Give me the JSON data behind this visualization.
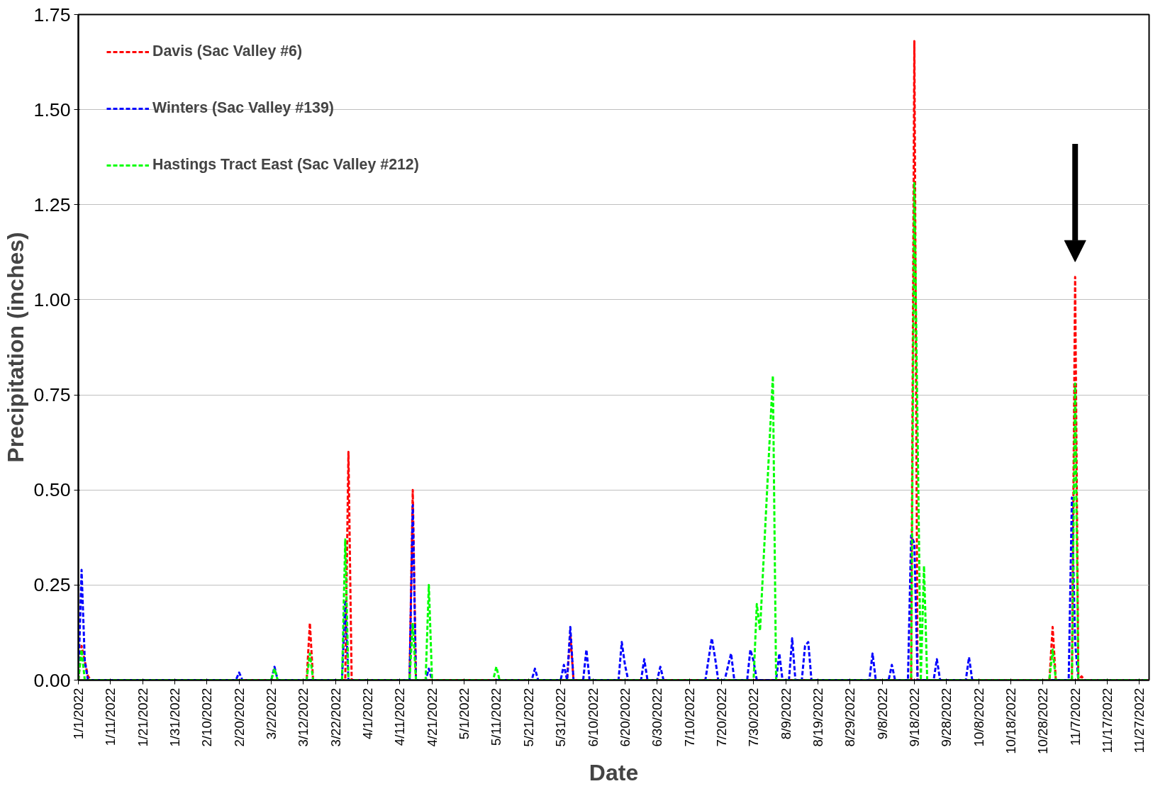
{
  "chart_data": {
    "type": "line",
    "xlabel": "Date",
    "ylabel": "Precipitation (inches)",
    "line_style": "dashed",
    "grid": "y",
    "legend": "top left",
    "xlim": [
      "2022-01-01",
      "2022-11-30"
    ],
    "ylim": [
      0,
      1.75
    ],
    "yticks": [
      {
        "value": 0,
        "label": "0.00"
      },
      {
        "value": 0.25,
        "label": "0.25"
      },
      {
        "value": 0.5,
        "label": "0.50"
      },
      {
        "value": 0.75,
        "label": "0.75"
      },
      {
        "value": 1.0,
        "label": "1.00"
      },
      {
        "value": 1.25,
        "label": "1.25"
      },
      {
        "value": 1.5,
        "label": "1.50"
      },
      {
        "value": 1.75,
        "label": "1.75"
      }
    ],
    "xticks": [
      {
        "value": "2022-01-01",
        "label": "1/1/2022"
      },
      {
        "value": "2022-01-11",
        "label": "1/11/2022"
      },
      {
        "value": "2022-01-21",
        "label": "1/21/2022"
      },
      {
        "value": "2022-01-31",
        "label": "1/31/2022"
      },
      {
        "value": "2022-02-10",
        "label": "2/10/2022"
      },
      {
        "value": "2022-02-20",
        "label": "2/20/2022"
      },
      {
        "value": "2022-03-02",
        "label": "3/2/2022"
      },
      {
        "value": "2022-03-12",
        "label": "3/12/2022"
      },
      {
        "value": "2022-03-22",
        "label": "3/22/2022"
      },
      {
        "value": "2022-04-01",
        "label": "4/1/2022"
      },
      {
        "value": "2022-04-11",
        "label": "4/11/2022"
      },
      {
        "value": "2022-04-21",
        "label": "4/21/2022"
      },
      {
        "value": "2022-05-01",
        "label": "5/1/2022"
      },
      {
        "value": "2022-05-11",
        "label": "5/11/2022"
      },
      {
        "value": "2022-05-21",
        "label": "5/21/2022"
      },
      {
        "value": "2022-05-31",
        "label": "5/31/2022"
      },
      {
        "value": "2022-06-10",
        "label": "6/10/2022"
      },
      {
        "value": "2022-06-20",
        "label": "6/20/2022"
      },
      {
        "value": "2022-06-30",
        "label": "6/30/2022"
      },
      {
        "value": "2022-07-10",
        "label": "7/10/2022"
      },
      {
        "value": "2022-07-20",
        "label": "7/20/2022"
      },
      {
        "value": "2022-07-30",
        "label": "7/30/2022"
      },
      {
        "value": "2022-08-09",
        "label": "8/9/2022"
      },
      {
        "value": "2022-08-19",
        "label": "8/19/2022"
      },
      {
        "value": "2022-08-29",
        "label": "8/29/2022"
      },
      {
        "value": "2022-09-08",
        "label": "9/8/2022"
      },
      {
        "value": "2022-09-18",
        "label": "9/18/2022"
      },
      {
        "value": "2022-09-28",
        "label": "9/28/2022"
      },
      {
        "value": "2022-10-08",
        "label": "10/8/2022"
      },
      {
        "value": "2022-10-18",
        "label": "10/18/2022"
      },
      {
        "value": "2022-10-28",
        "label": "10/28/2022"
      },
      {
        "value": "2022-11-07",
        "label": "11/7/2022"
      },
      {
        "value": "2022-11-17",
        "label": "11/17/2022"
      },
      {
        "value": "2022-11-27",
        "label": "11/27/2022"
      }
    ],
    "series": [
      {
        "name": "Davis (Sac Valley #6)",
        "color": "#ff0000",
        "x": [
          "2022-01-01",
          "2022-01-02",
          "2022-01-04",
          "2022-01-05",
          "2022-03-13",
          "2022-03-14",
          "2022-03-15",
          "2022-03-25",
          "2022-03-26",
          "2022-03-27",
          "2022-04-14",
          "2022-04-15",
          "2022-04-16",
          "2022-06-02",
          "2022-06-03",
          "2022-06-04",
          "2022-09-17",
          "2022-09-18",
          "2022-09-19",
          "2022-10-30",
          "2022-10-31",
          "2022-11-01",
          "2022-11-06",
          "2022-11-07",
          "2022-11-08",
          "2022-11-09",
          "2022-11-10",
          "2022-11-30"
        ],
        "values": [
          0,
          0.09,
          0.01,
          0,
          0,
          0.15,
          0,
          0,
          0.6,
          0,
          0,
          0.5,
          0,
          0,
          0.12,
          0,
          0,
          1.68,
          0,
          0,
          0.14,
          0,
          0,
          1.06,
          0,
          0.01,
          0,
          0
        ]
      },
      {
        "name": "Winters (Sac Valley #139)",
        "color": "#0000ff",
        "x": [
          "2022-01-01",
          "2022-01-02",
          "2022-01-03",
          "2022-01-04",
          "2022-02-19",
          "2022-02-20",
          "2022-02-21",
          "2022-03-02",
          "2022-03-03",
          "2022-03-04",
          "2022-03-24",
          "2022-03-25",
          "2022-03-26",
          "2022-04-14",
          "2022-04-15",
          "2022-04-16",
          "2022-04-19",
          "2022-04-20",
          "2022-04-21",
          "2022-05-22",
          "2022-05-23",
          "2022-05-24",
          "2022-05-31",
          "2022-06-01",
          "2022-06-02",
          "2022-06-03",
          "2022-06-04",
          "2022-06-07",
          "2022-06-08",
          "2022-06-09",
          "2022-06-18",
          "2022-06-19",
          "2022-06-20",
          "2022-06-21",
          "2022-06-25",
          "2022-06-26",
          "2022-06-27",
          "2022-06-30",
          "2022-07-01",
          "2022-07-02",
          "2022-07-15",
          "2022-07-17",
          "2022-07-18",
          "2022-07-19",
          "2022-07-21",
          "2022-07-23",
          "2022-07-24",
          "2022-07-28",
          "2022-07-29",
          "2022-07-30",
          "2022-07-31",
          "2022-08-06",
          "2022-08-07",
          "2022-08-08",
          "2022-08-10",
          "2022-08-11",
          "2022-08-12",
          "2022-08-14",
          "2022-08-15",
          "2022-08-16",
          "2022-08-17",
          "2022-09-04",
          "2022-09-05",
          "2022-09-06",
          "2022-09-10",
          "2022-09-11",
          "2022-09-12",
          "2022-09-16",
          "2022-09-17",
          "2022-09-18",
          "2022-09-19",
          "2022-09-24",
          "2022-09-25",
          "2022-09-26",
          "2022-10-04",
          "2022-10-05",
          "2022-10-06",
          "2022-11-05",
          "2022-11-06",
          "2022-11-07",
          "2022-11-08",
          "2022-11-30"
        ],
        "values": [
          0,
          0.29,
          0.05,
          0,
          0,
          0.02,
          0,
          0,
          0.035,
          0,
          0,
          0.21,
          0,
          0,
          0.46,
          0,
          0,
          0.03,
          0,
          0,
          0.03,
          0,
          0,
          0.04,
          0,
          0.14,
          0,
          0,
          0.08,
          0,
          0,
          0.1,
          0.04,
          0,
          0,
          0.055,
          0,
          0,
          0.035,
          0,
          0,
          0.11,
          0.06,
          0,
          0,
          0.07,
          0,
          0,
          0.08,
          0.05,
          0,
          0,
          0.07,
          0,
          0,
          0.11,
          0,
          0,
          0.09,
          0.1,
          0,
          0,
          0.07,
          0,
          0,
          0.04,
          0,
          0,
          0.38,
          0.36,
          0,
          0,
          0.055,
          0,
          0,
          0.06,
          0,
          0,
          0.48,
          0.1,
          0,
          0
        ]
      },
      {
        "name": "Hastings Tract East (Sac Valley #212)",
        "color": "#00ff00",
        "x": [
          "2022-01-01",
          "2022-01-02",
          "2022-01-03",
          "2022-03-02",
          "2022-03-03",
          "2022-03-04",
          "2022-03-13",
          "2022-03-14",
          "2022-03-15",
          "2022-03-24",
          "2022-03-25",
          "2022-03-26",
          "2022-04-14",
          "2022-04-15",
          "2022-04-16",
          "2022-04-19",
          "2022-04-20",
          "2022-04-21",
          "2022-05-10",
          "2022-05-11",
          "2022-05-12",
          "2022-07-30",
          "2022-07-31",
          "2022-08-01",
          "2022-08-05",
          "2022-08-06",
          "2022-09-17",
          "2022-09-18",
          "2022-09-20",
          "2022-09-21",
          "2022-09-22",
          "2022-10-30",
          "2022-10-31",
          "2022-11-01",
          "2022-11-06",
          "2022-11-07",
          "2022-11-08",
          "2022-11-30"
        ],
        "values": [
          0,
          0.08,
          0,
          0,
          0.03,
          0,
          0,
          0.07,
          0,
          0,
          0.37,
          0,
          0,
          0.15,
          0,
          0,
          0.25,
          0,
          0,
          0.035,
          0,
          0,
          0.2,
          0.13,
          0.8,
          0,
          0,
          1.31,
          0,
          0.3,
          0,
          0,
          0.08,
          0,
          0,
          0.78,
          0,
          0
        ]
      }
    ]
  }
}
